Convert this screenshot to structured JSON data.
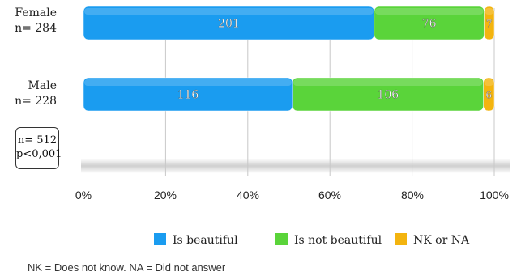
{
  "chart_data": {
    "type": "bar",
    "orientation": "horizontal",
    "stacked": "percent",
    "categories": [
      {
        "name": "Female",
        "n_label": "n= 284"
      },
      {
        "name": "Male",
        "n_label": "n= 228"
      }
    ],
    "series": [
      {
        "name": "Is beautiful",
        "color": "#1a9cf0",
        "values": [
          201,
          116
        ]
      },
      {
        "name": "Is not beautiful",
        "color": "#5ad43a",
        "values": [
          76,
          106
        ]
      },
      {
        "name": "NK or NA",
        "color": "#f3b40f",
        "values": [
          7,
          6
        ]
      }
    ],
    "x_ticks": [
      "0%",
      "20%",
      "40%",
      "60%",
      "80%",
      "100%"
    ],
    "xlim": [
      0,
      100
    ],
    "grid": true,
    "legend": "bottom",
    "annotation": {
      "line1": "n= 512",
      "line2": "p<0,001"
    },
    "footnote": "NK = Does not know. NA = Did not answer"
  }
}
